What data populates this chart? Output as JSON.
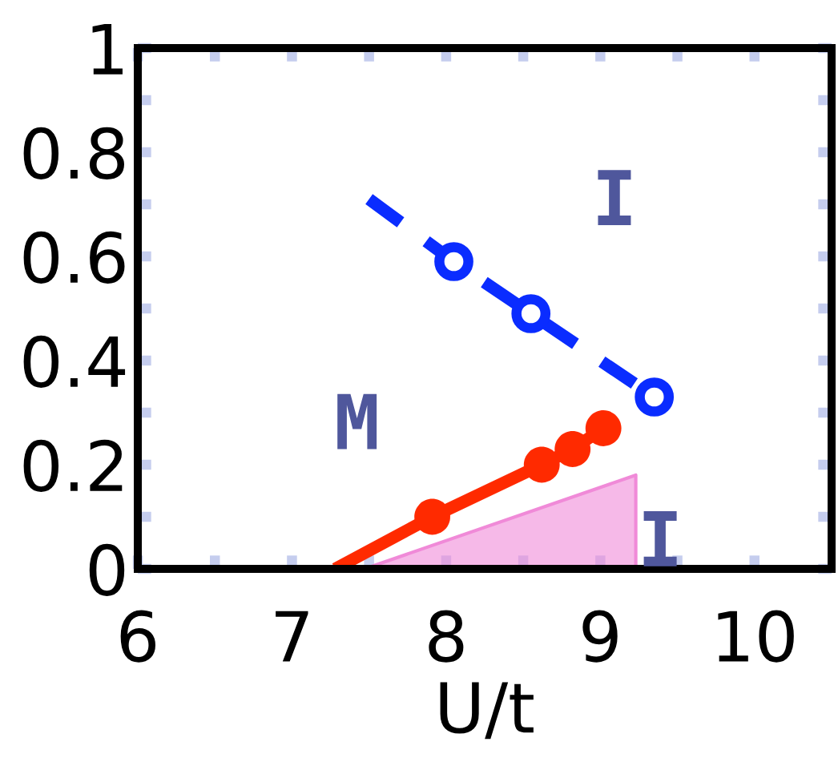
{
  "chart_data": {
    "type": "line",
    "xlabel": "U/t",
    "xlim": [
      6,
      10.5
    ],
    "ylim": [
      0,
      1
    ],
    "xticks": [
      6,
      {
        "value": 6.5,
        "label": null
      },
      7,
      {
        "value": 7.5,
        "label": null
      },
      8,
      {
        "value": 8.5,
        "label": null
      },
      9,
      {
        "value": 9.5,
        "label": null
      },
      10
    ],
    "yticks": [
      0,
      {
        "value": 0.1,
        "label": null
      },
      0.2,
      {
        "value": 0.3,
        "label": null
      },
      0.4,
      {
        "value": 0.5,
        "label": null
      },
      0.6,
      {
        "value": 0.7,
        "label": null
      },
      0.8,
      {
        "value": 0.9,
        "label": null
      },
      1
    ],
    "series": [
      {
        "type": "area",
        "color": "#f08ad8",
        "x": [
          7.47,
          9.23
        ],
        "values": [
          0,
          0.18
        ]
      },
      {
        "color": "#0a2cff",
        "x": [
          7.5,
          8.05,
          8.55,
          9.35
        ],
        "values": [
          0.71,
          0.59,
          0.49,
          0.33
        ],
        "line_style": "dashed",
        "marker": "none"
      },
      {
        "type": "scatter",
        "color": "#0a2cff",
        "x": [
          8.05,
          8.55,
          9.35
        ],
        "values": [
          0.59,
          0.49,
          0.33
        ],
        "marker": "circle",
        "line_style": "dashed"
      },
      {
        "color": "#ff2a00",
        "x": [
          7.28,
          7.91,
          8.62,
          8.82,
          9.02
        ],
        "values": [
          0,
          0.1,
          0.2,
          0.23,
          0.27
        ],
        "line_style": "solid",
        "marker": "none"
      },
      {
        "type": "scatter",
        "color": "#ff2a00",
        "x": [
          7.91,
          8.62,
          8.82,
          9.02
        ],
        "values": [
          0.1,
          0.2,
          0.23,
          0.27
        ],
        "marker": "circle"
      }
    ],
    "annotations": [
      "M",
      "I",
      "I"
    ],
    "grid": false
  }
}
